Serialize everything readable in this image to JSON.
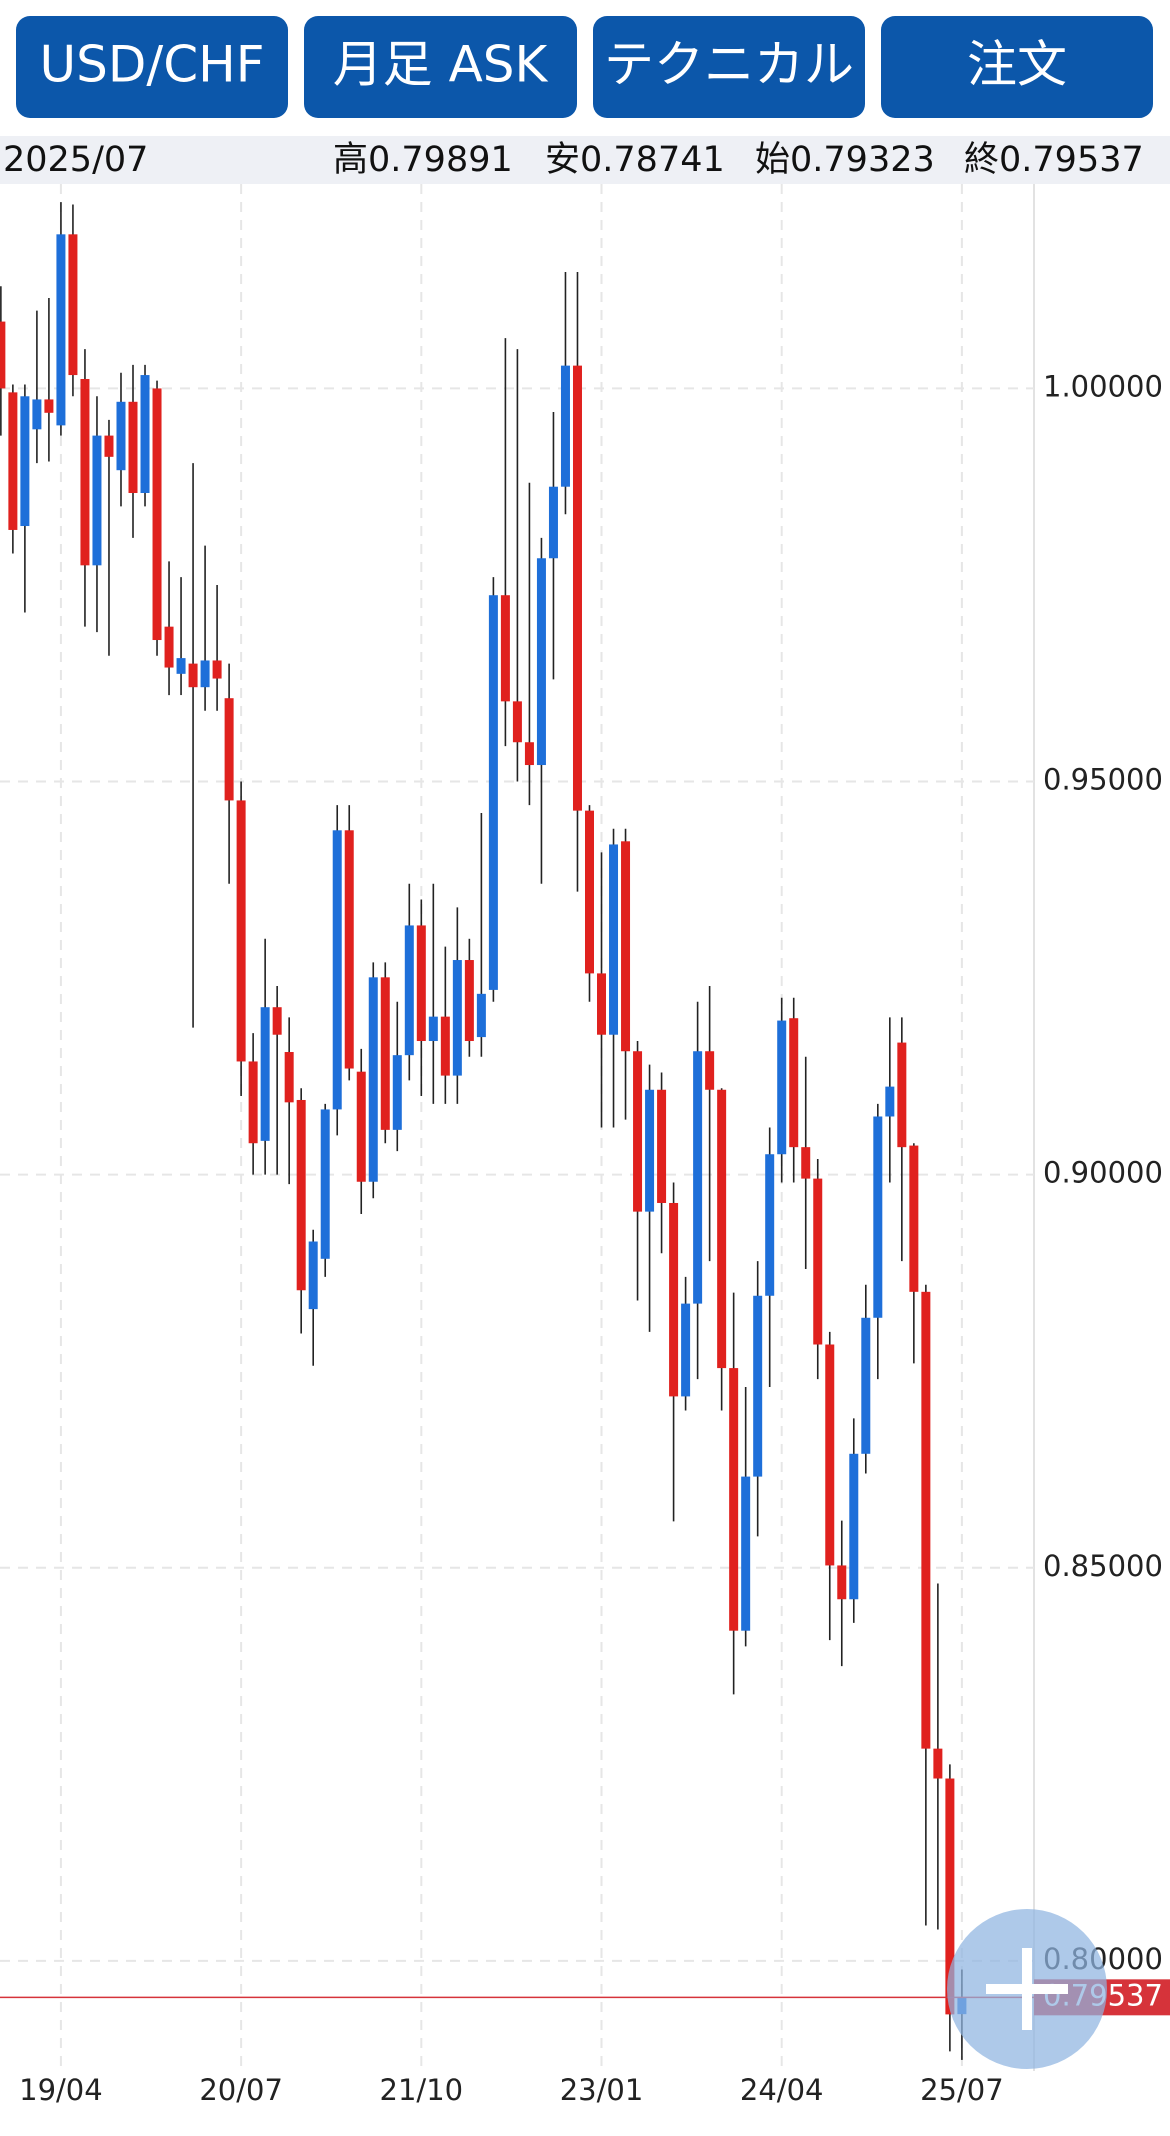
{
  "header": {
    "buttons": [
      "USD/CHF",
      "月足 ASK",
      "テクニカル",
      "注文"
    ]
  },
  "info": {
    "date": "2025/07",
    "labels": [
      "高",
      "安",
      "始",
      "終"
    ]
  },
  "chart_data": {
    "type": "candlestick",
    "categories": [
      null,
      null,
      null,
      null,
      null,
      "19/04",
      null,
      null,
      null,
      null,
      null,
      null,
      null,
      null,
      null,
      null,
      null,
      null,
      null,
      null,
      "20/07",
      null,
      null,
      null,
      null,
      null,
      null,
      null,
      null,
      null,
      null,
      null,
      null,
      null,
      null,
      "21/10",
      null,
      null,
      null,
      null,
      null,
      null,
      null,
      null,
      null,
      null,
      null,
      null,
      null,
      null,
      "23/01",
      null,
      null,
      null,
      null,
      null,
      null,
      null,
      null,
      null,
      null,
      null,
      null,
      null,
      null,
      "24/04",
      null,
      null,
      null,
      null,
      null,
      null,
      null,
      null,
      null,
      null,
      null,
      null,
      null,
      null,
      "25/07"
    ],
    "open": [
      1.0085,
      0.9995,
      0.9825,
      0.9948,
      0.9986,
      0.9953,
      1.0196,
      1.0012,
      0.9775,
      0.994,
      0.9896,
      0.9983,
      0.9867,
      1.0,
      0.9697,
      0.9637,
      0.965,
      0.962,
      0.9654,
      0.9606,
      0.9476,
      0.9144,
      0.9043,
      0.9213,
      0.9156,
      0.9095,
      0.8829,
      0.8893,
      0.9083,
      0.9438,
      0.9131,
      0.8991,
      0.9251,
      0.9057,
      0.9152,
      0.9317,
      0.917,
      0.9201,
      0.9126,
      0.9273,
      0.9175,
      0.9235,
      0.9737,
      0.9602,
      0.955,
      0.9521,
      0.9784,
      0.9875,
      1.0029,
      0.9463,
      0.9256,
      0.9178,
      0.9424,
      0.9157,
      0.8953,
      0.9108,
      0.8964,
      0.8718,
      0.8836,
      0.9157,
      0.9108,
      0.8754,
      0.842,
      0.8616,
      0.8846,
      0.9026,
      0.9199,
      0.9035,
      0.8995,
      0.8784,
      0.8503,
      0.846,
      0.8645,
      0.8818,
      0.9074,
      0.9168,
      0.9037,
      0.8851,
      0.827,
      0.8232,
      0.79323
    ],
    "high": [
      1.013,
      1.0005,
      1.0005,
      1.0099,
      1.0115,
      1.0237,
      1.0234,
      1.005,
      0.999,
      0.996,
      1.002,
      1.003,
      1.003,
      1.001,
      0.978,
      0.976,
      0.9905,
      0.98,
      0.975,
      0.965,
      0.95,
      0.918,
      0.93,
      0.924,
      0.92,
      0.911,
      0.893,
      0.909,
      0.947,
      0.947,
      0.916,
      0.927,
      0.927,
      0.922,
      0.937,
      0.935,
      0.937,
      0.929,
      0.934,
      0.93,
      0.946,
      0.976,
      1.0064,
      1.005,
      0.988,
      0.981,
      0.997,
      1.0148,
      1.0148,
      0.947,
      0.941,
      0.944,
      0.944,
      0.917,
      0.914,
      0.913,
      0.899,
      0.887,
      0.922,
      0.924,
      0.911,
      0.885,
      0.873,
      0.889,
      0.906,
      0.9225,
      0.9225,
      0.915,
      0.902,
      0.88,
      0.856,
      0.869,
      0.886,
      0.909,
      0.92,
      0.92,
      0.904,
      0.886,
      0.848,
      0.825,
      0.79891
    ],
    "low": [
      0.994,
      0.979,
      0.9715,
      0.9905,
      0.9907,
      0.994,
      0.999,
      0.9697,
      0.969,
      0.966,
      0.985,
      0.981,
      0.985,
      0.966,
      0.961,
      0.961,
      0.9187,
      0.959,
      0.959,
      0.937,
      0.91,
      0.9,
      0.9,
      0.9,
      0.8988,
      0.8798,
      0.8757,
      0.887,
      0.905,
      0.912,
      0.895,
      0.897,
      0.904,
      0.903,
      0.912,
      0.91,
      0.909,
      0.909,
      0.909,
      0.915,
      0.915,
      0.922,
      0.9545,
      0.95,
      0.947,
      0.937,
      0.963,
      0.984,
      0.936,
      0.922,
      0.906,
      0.906,
      0.907,
      0.884,
      0.88,
      0.89,
      0.8559,
      0.87,
      0.874,
      0.889,
      0.87,
      0.8339,
      0.84,
      0.854,
      0.873,
      0.899,
      0.899,
      0.888,
      0.874,
      0.8408,
      0.8375,
      0.843,
      0.862,
      0.874,
      0.899,
      0.889,
      0.876,
      0.8045,
      0.804,
      0.7885,
      0.78741
    ],
    "close": [
      1.0,
      0.982,
      0.999,
      0.9986,
      0.9969,
      1.0196,
      1.0017,
      0.9775,
      0.994,
      0.9913,
      0.9983,
      0.9867,
      1.0017,
      0.968,
      0.9645,
      0.9657,
      0.962,
      0.9654,
      0.9631,
      0.9476,
      0.9144,
      0.904,
      0.9213,
      0.9178,
      0.9092,
      0.8853,
      0.8915,
      0.9083,
      0.9438,
      0.9135,
      0.8991,
      0.9251,
      0.9057,
      0.9152,
      0.9317,
      0.917,
      0.9201,
      0.9126,
      0.9273,
      0.917,
      0.923,
      0.9737,
      0.9602,
      0.955,
      0.9521,
      0.9784,
      0.9875,
      1.0029,
      0.9463,
      0.9256,
      0.9178,
      0.942,
      0.9157,
      0.8953,
      0.9108,
      0.8964,
      0.8718,
      0.8836,
      0.9157,
      0.9108,
      0.8754,
      0.842,
      0.8616,
      0.8846,
      0.9026,
      0.9196,
      0.9035,
      0.8995,
      0.8784,
      0.8503,
      0.846,
      0.8645,
      0.8818,
      0.9074,
      0.9112,
      0.9035,
      0.8851,
      0.827,
      0.8232,
      0.7932,
      0.79537
    ],
    "up_color": "#1e6fd9",
    "down_color": "#e0211e",
    "price_line_color": "#d6333a",
    "ylim": [
      0.786,
      1.026
    ],
    "yticks": [
      {
        "value": 0.8,
        "label": "0.80000"
      },
      {
        "value": 0.85,
        "label": "0.85000"
      },
      {
        "value": 0.9,
        "label": "0.90000"
      },
      {
        "value": 0.95,
        "label": "0.95000"
      },
      {
        "value": 1.0,
        "label": "1.00000"
      }
    ],
    "grid": true
  }
}
